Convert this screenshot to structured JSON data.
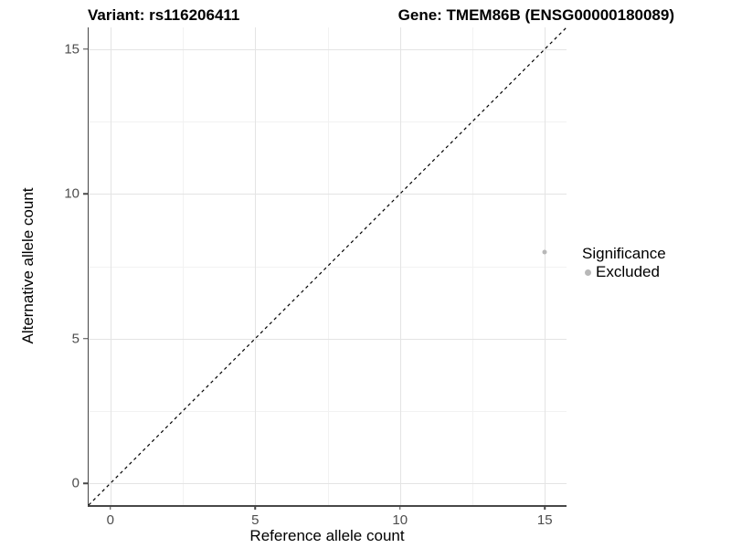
{
  "chart_data": {
    "type": "scatter",
    "title_left": "Variant: rs116206411",
    "title_right": "Gene: TMEM86B (ENSG00000180089)",
    "xlabel": "Reference allele count",
    "ylabel": "Alternative allele count",
    "xlim": [
      -0.75,
      15.75
    ],
    "ylim": [
      -0.75,
      15.75
    ],
    "x_major_ticks": [
      0,
      5,
      10,
      15
    ],
    "y_major_ticks": [
      0,
      5,
      10,
      15
    ],
    "x_minor_ticks": [
      2.5,
      7.5,
      12.5
    ],
    "y_minor_ticks": [
      2.5,
      7.5,
      12.5
    ],
    "grid": "major+minor",
    "identity_line": {
      "slope": 1,
      "intercept": 0,
      "linetype": "dashed",
      "color": "#000000"
    },
    "series": [
      {
        "name": "Excluded",
        "color": "#b8b8b8",
        "points": [
          {
            "x": 15,
            "y": 8
          }
        ]
      }
    ],
    "legend": {
      "title": "Significance",
      "position": "right",
      "entries": [
        {
          "label": "Excluded",
          "color": "#b8b8b8"
        }
      ]
    }
  },
  "colors": {
    "background": "#ffffff",
    "axis_line": "#474747",
    "tick_label": "#4d4d4d",
    "grid_major": "#e4e4e4",
    "grid_minor": "#f2f2f2",
    "point": "#b8b8b8",
    "identity_line": "#000000"
  }
}
